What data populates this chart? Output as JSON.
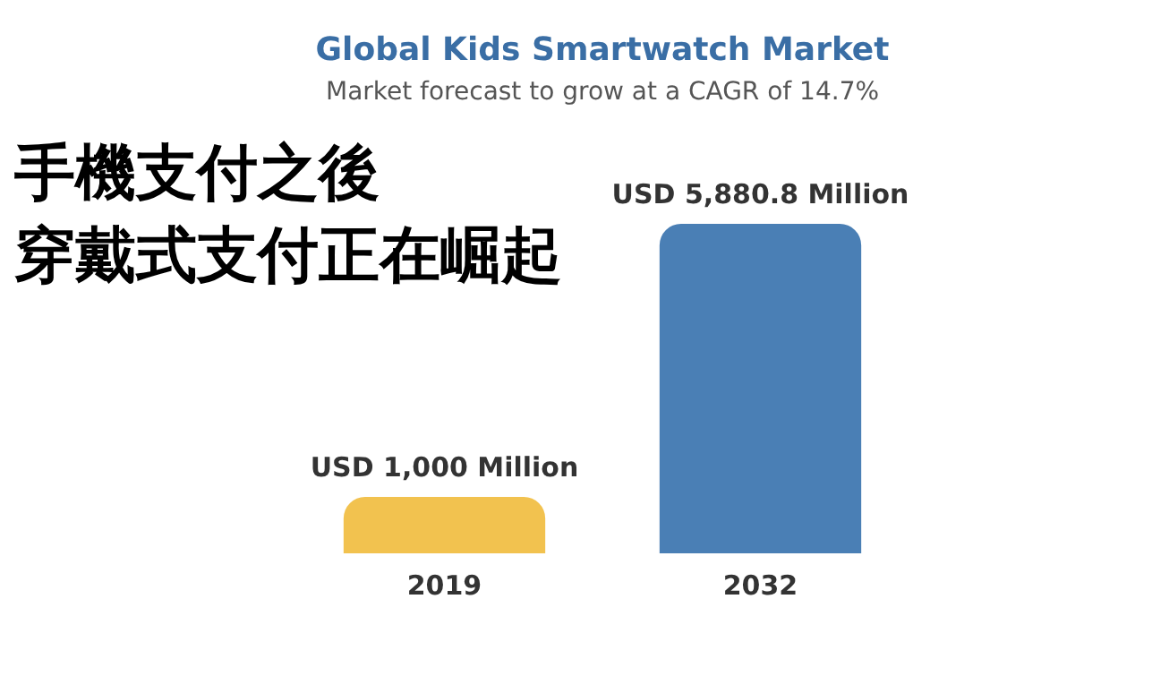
{
  "chart_data": {
    "type": "bar",
    "title": "Global Kids Smartwatch Market",
    "subtitle": "Market forecast to grow at a CAGR of 14.7%",
    "annotations": [
      "手機支付之後",
      "穿戴式支付正在崛起"
    ],
    "categories": [
      "2019",
      "2032"
    ],
    "values": [
      1000,
      5880.8
    ],
    "colors": [
      "#f2c24f",
      "#4a7fb5"
    ],
    "value_labels": [
      "USD 1,000 Million",
      "USD 5,880.8 Million"
    ],
    "grid": false,
    "legend": false
  }
}
